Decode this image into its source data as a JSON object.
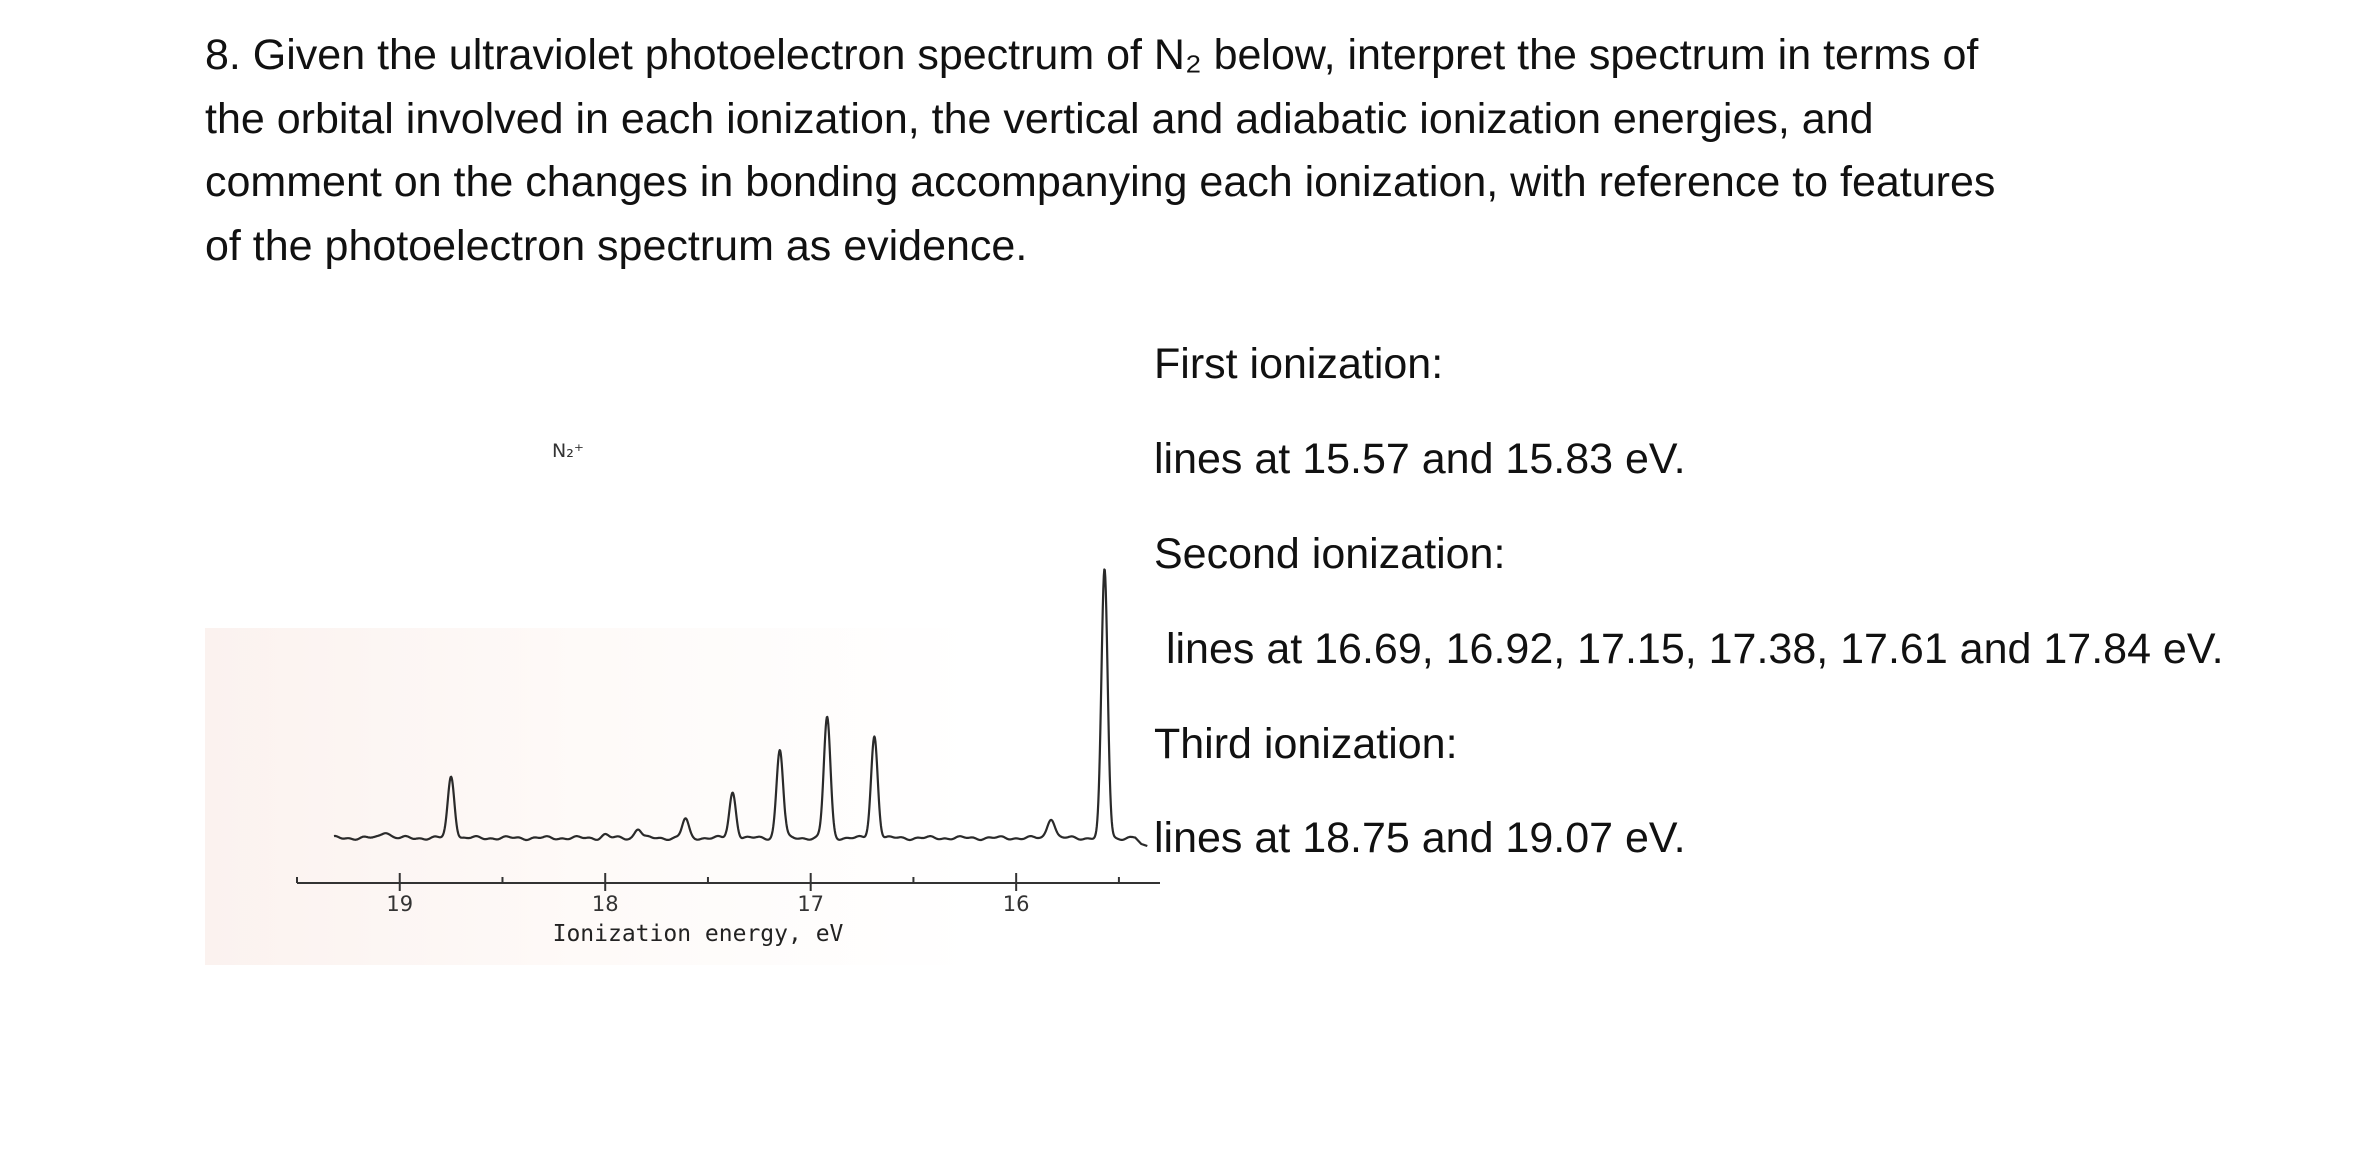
{
  "question": {
    "lines": [
      "8. Given the ultraviolet photoelectron spectrum of N₂ below, interpret the spectrum in terms of",
      "the orbital involved in each ionization, the vertical and adiabatic ionization energies, and",
      "comment on the changes in bonding accompanying each ionization, with reference to features",
      "of the photoelectron spectrum as evidence."
    ]
  },
  "notes": {
    "first_heading": "First ionization:",
    "first_lines": "lines at 15.57 and 15.83 eV.",
    "second_heading": "Second ionization:",
    "second_lines": " lines at 16.69, 16.92, 17.15, 17.38, 17.61 and 17.84 eV.",
    "third_heading": "Third ionization:",
    "third_lines": "lines at 18.75 and 19.07 eV."
  },
  "chart_data": {
    "type": "line",
    "species_label": "N₂⁺",
    "xlabel": "Ionization energy, eV",
    "x_reversed": true,
    "xlim": [
      19.5,
      15.3
    ],
    "tick_labels": [
      "19",
      "18",
      "17",
      "16"
    ],
    "tick_values": [
      19,
      18,
      17,
      16
    ],
    "minor_ticks": [
      19.5,
      18.5,
      17.5,
      16.5,
      15.5
    ],
    "peaks": [
      {
        "x": 15.57,
        "height": 1.0,
        "width": 0.015
      },
      {
        "x": 15.83,
        "height": 0.075,
        "width": 0.018
      },
      {
        "x": 16.69,
        "height": 0.38,
        "width": 0.016
      },
      {
        "x": 16.92,
        "height": 0.45,
        "width": 0.016
      },
      {
        "x": 17.15,
        "height": 0.33,
        "width": 0.016
      },
      {
        "x": 17.38,
        "height": 0.17,
        "width": 0.016
      },
      {
        "x": 17.61,
        "height": 0.07,
        "width": 0.016
      },
      {
        "x": 17.84,
        "height": 0.035,
        "width": 0.016
      },
      {
        "x": 18.0,
        "height": 0.012,
        "width": 0.016
      },
      {
        "x": 18.75,
        "height": 0.23,
        "width": 0.016
      },
      {
        "x": 19.07,
        "height": 0.025,
        "width": 0.02
      }
    ]
  }
}
